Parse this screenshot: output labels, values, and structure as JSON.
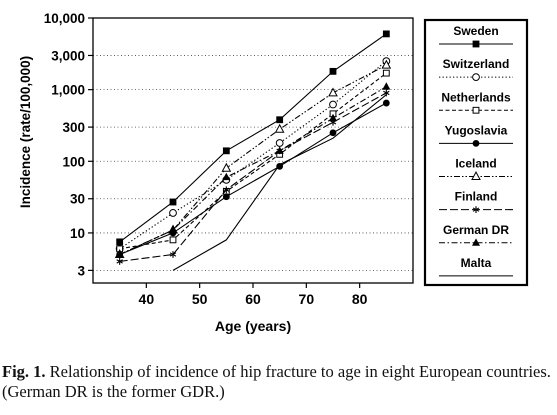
{
  "chart_data": {
    "type": "line",
    "title": "",
    "xlabel": "Age (years)",
    "ylabel": "Incidence (rate/100,000)",
    "x_scale": "linear",
    "y_scale": "log",
    "xlim": [
      30,
      90
    ],
    "ylim": [
      2,
      10000
    ],
    "x_ticks": [
      40,
      50,
      60,
      70,
      80
    ],
    "x_tick_labels": [
      "40",
      "50",
      "60",
      "70",
      "80"
    ],
    "y_ticks": [
      3,
      10,
      30,
      100,
      300,
      1000,
      3000,
      10000
    ],
    "y_tick_labels": [
      "3",
      "10",
      "30",
      "100",
      "300",
      "1,000",
      "3,000",
      "10,000"
    ],
    "grid": "horizontal dotted",
    "legend_position": "right",
    "x": [
      35,
      45,
      55,
      65,
      75,
      85
    ],
    "series": [
      {
        "name": "Sweden",
        "values": [
          7.5,
          27,
          140,
          380,
          1800,
          6000
        ],
        "color": "#000000",
        "dash": "solid",
        "marker": "filled-square"
      },
      {
        "name": "Switzerland",
        "values": [
          6,
          19,
          55,
          180,
          620,
          2500
        ],
        "color": "#000000",
        "dash": "dotted",
        "marker": "open-circle"
      },
      {
        "name": "Netherlands",
        "values": [
          6,
          8,
          38,
          125,
          460,
          1700
        ],
        "color": "#000000",
        "dash": "dashed",
        "marker": "open-square"
      },
      {
        "name": "Yugoslavia",
        "values": [
          5,
          10,
          32,
          85,
          250,
          650
        ],
        "color": "#000000",
        "dash": "solid",
        "marker": "filled-circle"
      },
      {
        "name": "Iceland",
        "values": [
          5,
          11,
          80,
          280,
          900,
          2200
        ],
        "color": "#000000",
        "dash": "dash-dot-dot",
        "marker": "open-triangle"
      },
      {
        "name": "Finland",
        "values": [
          4,
          5,
          40,
          140,
          350,
          900
        ],
        "color": "#000000",
        "dash": "long-dash",
        "marker": "star"
      },
      {
        "name": "German DR",
        "values": [
          5,
          11,
          60,
          140,
          400,
          1100
        ],
        "color": "#000000",
        "dash": "dash-dot",
        "marker": "filled-triangle"
      },
      {
        "name": "Malta",
        "values": [
          null,
          3,
          8,
          90,
          210,
          850
        ],
        "color": "#000000",
        "dash": "solid",
        "marker": "none"
      }
    ]
  },
  "caption": {
    "label": "Fig. 1.",
    "text": "Relationship of incidence of hip fracture to age in eight European countries. (German DR is the former GDR.)"
  }
}
